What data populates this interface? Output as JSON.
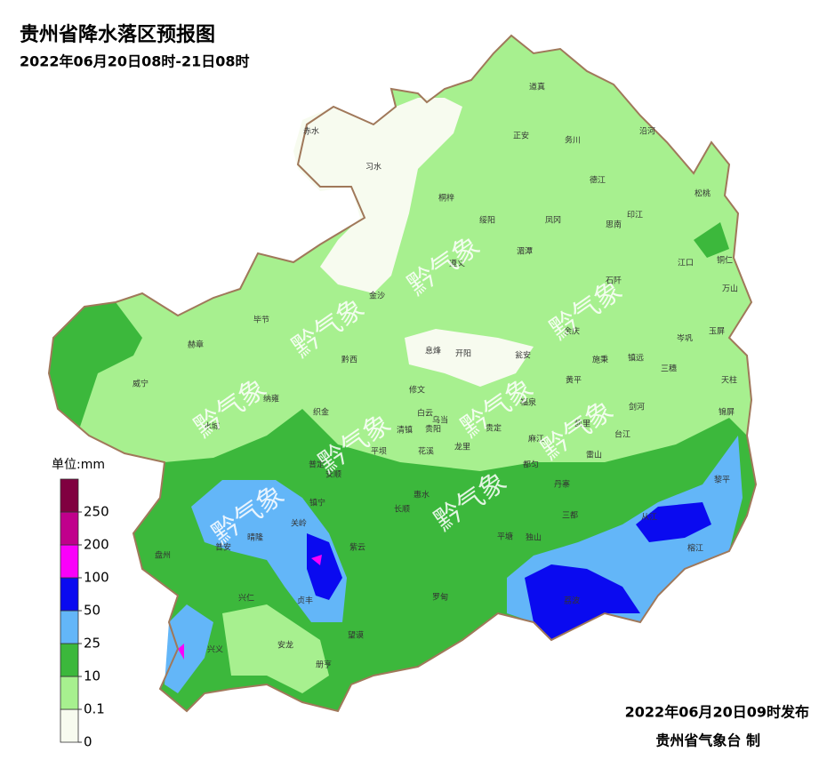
{
  "header": {
    "title": "贵州省降水落区预报图",
    "subtitle": "2022年06月20日08时-21日08时"
  },
  "legend": {
    "unit": "单位:mm",
    "ticks": [
      0,
      0.1,
      10,
      25,
      50,
      100,
      200,
      250
    ],
    "colors": [
      "#f7fbef",
      "#a7f08f",
      "#3cb83c",
      "#63b6f8",
      "#0a0af0",
      "#fa00fa",
      "#c0008c",
      "#800040"
    ]
  },
  "watermark": "黔气象",
  "places": [
    "赤水",
    "习水",
    "道真",
    "正安",
    "务川",
    "沿河",
    "桐梓",
    "德江",
    "松桃",
    "绥阳",
    "凤冈",
    "印江",
    "思南",
    "湄潭",
    "江口",
    "铜仁",
    "遵义",
    "金沙",
    "万山",
    "石阡",
    "毕节",
    "余庆",
    "玉屏",
    "岑巩",
    "赫章",
    "黔西",
    "息烽",
    "开阳",
    "瓮安",
    "施秉",
    "镇远",
    "三穗",
    "天柱",
    "威宁",
    "纳雍",
    "修文",
    "黄平",
    "福泉",
    "剑河",
    "锦屏",
    "织金",
    "白云",
    "乌当",
    "贵定",
    "凯里",
    "水城",
    "清镇",
    "贵阳",
    "麻江",
    "台江",
    "雷山",
    "平坝",
    "花溪",
    "龙里",
    "都匀",
    "普定",
    "安顺",
    "丹寨",
    "黎平",
    "镇宁",
    "惠水",
    "长顺",
    "三都",
    "从江",
    "关岭",
    "盘州",
    "普安",
    "晴隆",
    "紫云",
    "平塘",
    "独山",
    "榕江",
    "兴仁",
    "贞丰",
    "罗甸",
    "荔波",
    "望谟",
    "兴义",
    "安龙",
    "册亨"
  ],
  "footer": {
    "issued": "2022年06月20日09时发布",
    "agency": "贵州省气象台 制"
  }
}
